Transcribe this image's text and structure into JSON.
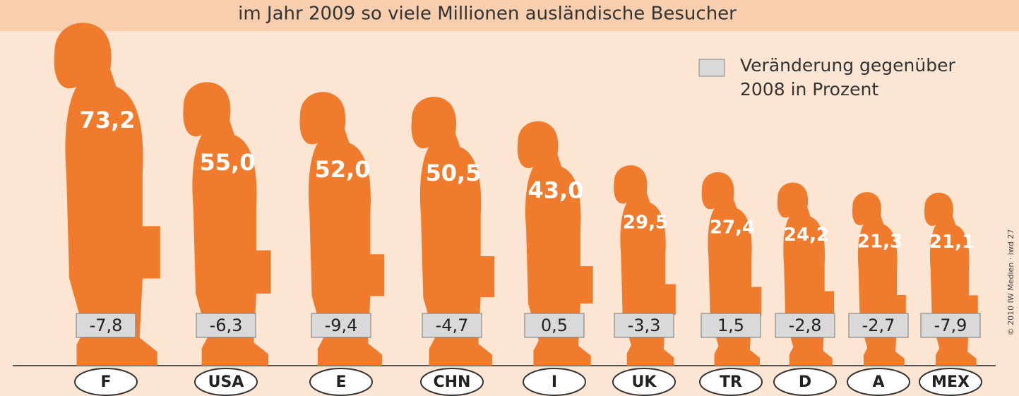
{
  "chart_data": {
    "type": "pictogram",
    "title": "im Jahr 2009 so viele Millionen ausländische Besucher",
    "categories": [
      "F",
      "USA",
      "E",
      "CHN",
      "I",
      "UK",
      "TR",
      "D",
      "A",
      "MEX"
    ],
    "values": [
      73.2,
      55.0,
      52.0,
      50.5,
      43.0,
      29.5,
      27.4,
      24.2,
      21.3,
      21.1
    ],
    "value_labels": [
      "73,2",
      "55,0",
      "52,0",
      "50,5",
      "43,0",
      "29,5",
      "27,4",
      "24,2",
      "21,3",
      "21,1"
    ],
    "color": "#f07b2c",
    "changes": {
      "name": "Veränderung gegenüber 2008 in Prozent",
      "color": "#d9d9d9",
      "values": [
        -7.8,
        -6.3,
        -9.4,
        -4.7,
        0.5,
        -3.3,
        1.5,
        -2.8,
        -2.7,
        -7.9
      ],
      "value_labels": [
        "-7,8",
        "-6,3",
        "-9,4",
        "-4,7",
        "0,5",
        "-3,3",
        "1,5",
        "-2,8",
        "-2,7",
        "-7,9"
      ]
    },
    "source": "© 2010 IW Medien · iwd 27"
  }
}
